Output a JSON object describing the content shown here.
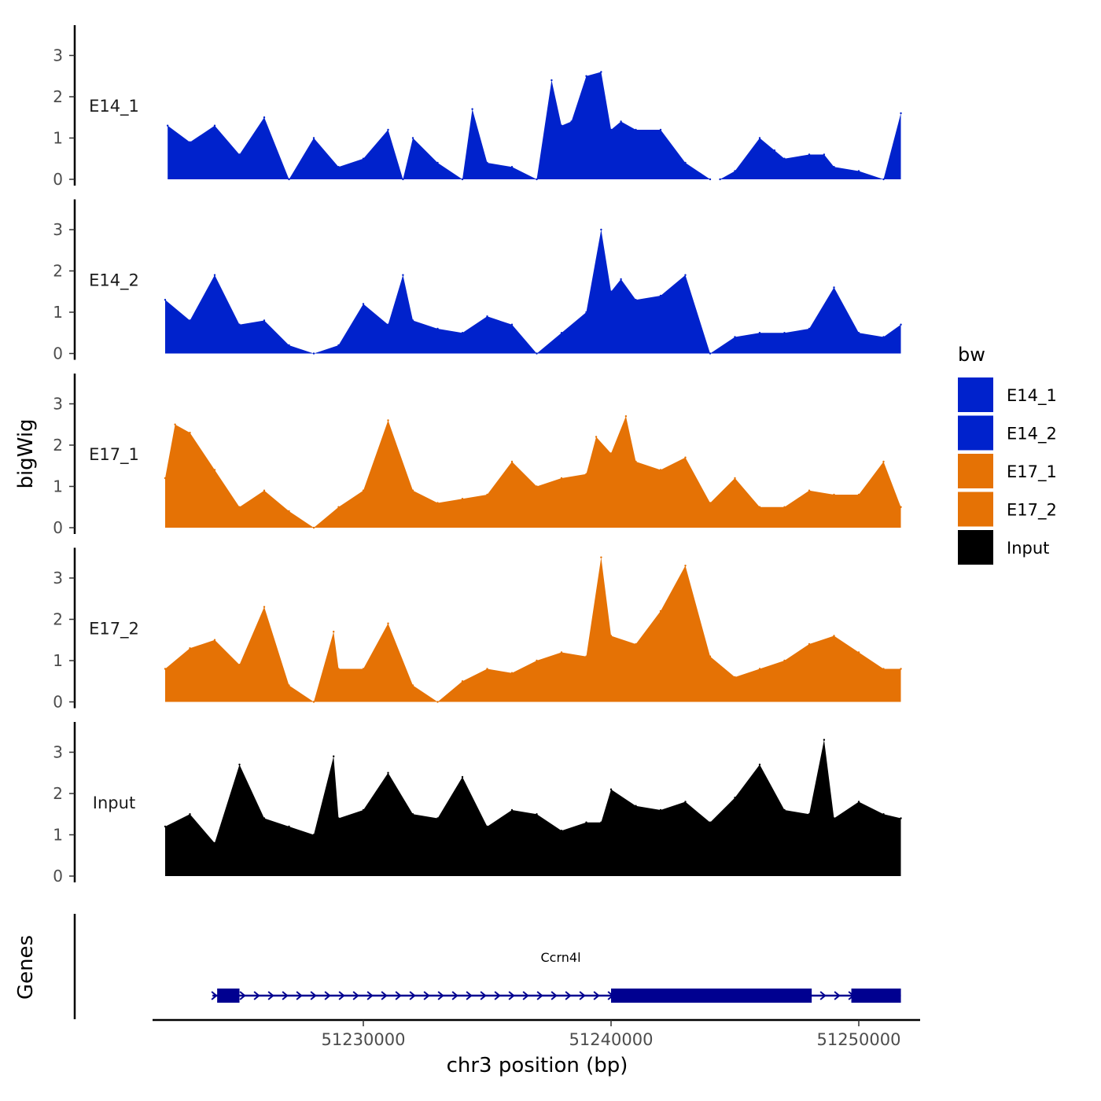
{
  "chart_data": {
    "type": "area",
    "title": "",
    "xlabel": "chr3 position (bp)",
    "ylabel": "bigWig",
    "genes_label": "Genes",
    "xlim": [
      51222000,
      51252000
    ],
    "x_ticks": [
      51230000,
      51240000,
      51250000
    ],
    "x_tick_labels": [
      "51230000",
      "51240000",
      "51250000"
    ],
    "ylim": [
      0,
      3.8
    ],
    "y_ticks": [
      0,
      1,
      2,
      3
    ],
    "y_tick_labels": [
      "0",
      "1",
      "2",
      "3"
    ],
    "legend": {
      "title": "bw",
      "position": "right",
      "entries": [
        {
          "label": "E14_1",
          "color": "#0022cc"
        },
        {
          "label": "E14_2",
          "color": "#0022cc"
        },
        {
          "label": "E17_1",
          "color": "#e57205"
        },
        {
          "label": "E17_2",
          "color": "#e57205"
        },
        {
          "label": "Input",
          "color": "#000000"
        }
      ]
    },
    "series": [
      {
        "name": "E14_1",
        "color": "#0022cc",
        "x": [
          51222100,
          51223000,
          51224000,
          51225000,
          51226000,
          51227000,
          51228000,
          51229000,
          51230000,
          51231000,
          51231600,
          51232000,
          51233000,
          51234000,
          51234400,
          51235000,
          51236000,
          51237000,
          51237600,
          51238000,
          51238400,
          51239000,
          51239600,
          51240000,
          51240400,
          51241000,
          51242000,
          51243000,
          51244000,
          51244400,
          51245000,
          51246000,
          51246600,
          51247000,
          51248000,
          51248600,
          51249000,
          51250000,
          51251000,
          51251700
        ],
        "values": [
          1.3,
          0.9,
          1.3,
          0.6,
          1.5,
          0.0,
          1.0,
          0.3,
          0.5,
          1.2,
          0.0,
          1.0,
          0.4,
          0.0,
          1.7,
          0.4,
          0.3,
          0.0,
          2.4,
          1.3,
          1.4,
          2.5,
          2.6,
          1.2,
          1.4,
          1.2,
          1.2,
          0.4,
          0.0,
          0.0,
          0.2,
          1.0,
          0.7,
          0.5,
          0.6,
          0.6,
          0.3,
          0.2,
          0.0,
          1.6
        ]
      },
      {
        "name": "E14_2",
        "color": "#0022cc",
        "x": [
          51222000,
          51223000,
          51224000,
          51225000,
          51226000,
          51227000,
          51228000,
          51229000,
          51230000,
          51231000,
          51231600,
          51232000,
          51233000,
          51234000,
          51235000,
          51236000,
          51237000,
          51238000,
          51239000,
          51239600,
          51240000,
          51240400,
          51241000,
          51242000,
          51243000,
          51244000,
          51245000,
          51246000,
          51247000,
          51248000,
          51249000,
          51250000,
          51251000,
          51251700
        ],
        "values": [
          1.3,
          0.8,
          1.9,
          0.7,
          0.8,
          0.2,
          0.0,
          0.2,
          1.2,
          0.7,
          1.9,
          0.8,
          0.6,
          0.5,
          0.9,
          0.7,
          0.0,
          0.5,
          1.0,
          3.0,
          1.5,
          1.8,
          1.3,
          1.4,
          1.9,
          0.0,
          0.4,
          0.5,
          0.5,
          0.6,
          1.6,
          0.5,
          0.4,
          0.7
        ]
      },
      {
        "name": "E17_1",
        "color": "#e57205",
        "x": [
          51222000,
          51222400,
          51223000,
          51224000,
          51225000,
          51226000,
          51227000,
          51228000,
          51229000,
          51230000,
          51231000,
          51232000,
          51233000,
          51234000,
          51235000,
          51236000,
          51237000,
          51238000,
          51239000,
          51239400,
          51240000,
          51240600,
          51241000,
          51242000,
          51243000,
          51244000,
          51245000,
          51246000,
          51247000,
          51248000,
          51249000,
          51250000,
          51251000,
          51251700
        ],
        "values": [
          1.2,
          2.5,
          2.3,
          1.4,
          0.5,
          0.9,
          0.4,
          0.0,
          0.5,
          0.9,
          2.6,
          0.9,
          0.6,
          0.7,
          0.8,
          1.6,
          1.0,
          1.2,
          1.3,
          2.2,
          1.8,
          2.7,
          1.6,
          1.4,
          1.7,
          0.6,
          1.2,
          0.5,
          0.5,
          0.9,
          0.8,
          0.8,
          1.6,
          0.5
        ]
      },
      {
        "name": "E17_2",
        "color": "#e57205",
        "x": [
          51222000,
          51223000,
          51224000,
          51225000,
          51226000,
          51227000,
          51228000,
          51228800,
          51229000,
          51230000,
          51231000,
          51232000,
          51233000,
          51234000,
          51235000,
          51236000,
          51237000,
          51238000,
          51239000,
          51239600,
          51240000,
          51241000,
          51242000,
          51243000,
          51244000,
          51245000,
          51246000,
          51247000,
          51248000,
          51249000,
          51250000,
          51251000,
          51251700
        ],
        "values": [
          0.8,
          1.3,
          1.5,
          0.9,
          2.3,
          0.4,
          0.0,
          1.7,
          0.8,
          0.8,
          1.9,
          0.4,
          0.0,
          0.5,
          0.8,
          0.7,
          1.0,
          1.2,
          1.1,
          3.5,
          1.6,
          1.4,
          2.2,
          3.3,
          1.1,
          0.6,
          0.8,
          1.0,
          1.4,
          1.6,
          1.2,
          0.8,
          0.8
        ]
      },
      {
        "name": "Input",
        "color": "#000000",
        "x": [
          51222000,
          51223000,
          51224000,
          51225000,
          51226000,
          51227000,
          51228000,
          51228800,
          51229000,
          51230000,
          51231000,
          51232000,
          51233000,
          51234000,
          51235000,
          51236000,
          51237000,
          51238000,
          51239000,
          51239600,
          51240000,
          51241000,
          51242000,
          51243000,
          51244000,
          51245000,
          51246000,
          51247000,
          51248000,
          51248600,
          51249000,
          51250000,
          51251000,
          51251700
        ],
        "values": [
          1.2,
          1.5,
          0.8,
          2.7,
          1.4,
          1.2,
          1.0,
          2.9,
          1.4,
          1.6,
          2.5,
          1.5,
          1.4,
          2.4,
          1.2,
          1.6,
          1.5,
          1.1,
          1.3,
          1.3,
          2.1,
          1.7,
          1.6,
          1.8,
          1.3,
          1.9,
          2.7,
          1.6,
          1.5,
          3.3,
          1.4,
          1.8,
          1.5,
          1.4
        ]
      }
    ],
    "gene_track": {
      "gene_name": "Ccrn4l",
      "strand": "+",
      "start": 51224100,
      "end": 51251700,
      "exons": [
        {
          "start": 51224100,
          "end": 51225000
        },
        {
          "start": 51240000,
          "end": 51244600
        },
        {
          "start": 51243400,
          "end": 51248100
        },
        {
          "start": 51249700,
          "end": 51251700
        }
      ]
    }
  }
}
